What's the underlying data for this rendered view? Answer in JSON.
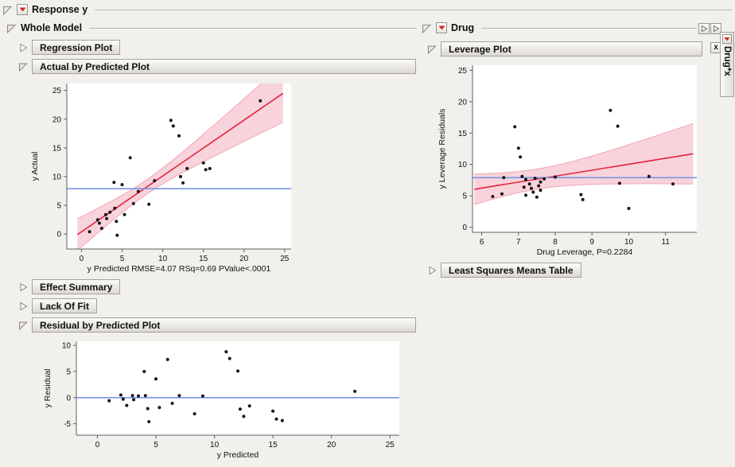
{
  "outlines": {
    "response": "Response y",
    "whole_model": "Whole Model",
    "regression_plot": "Regression Plot",
    "actual_by_predicted": "Actual by Predicted Plot",
    "effect_summary": "Effect Summary",
    "lack_of_fit": "Lack Of Fit",
    "residual_by_predicted": "Residual by Predicted Plot",
    "drug": "Drug",
    "leverage_plot": "Leverage Plot",
    "least_squares_means": "Least Squares Means Table",
    "drug_x_tab": "Drug*x",
    "close_label": "x"
  },
  "palette": {
    "fit": "#e2243f",
    "band_fill": "#f9d3db",
    "band_edge": "#efa6b4",
    "mean": "#7795e8",
    "point": "#141414",
    "axis": "#5f5f5f",
    "plot_bg": "#ffffff"
  },
  "chart_data": [
    {
      "type": "scatter",
      "title": "Actual by Predicted Plot",
      "xlabel": "y Predicted RMSE=4.07 RSq=0.69 PValue<.0001",
      "ylabel": "y Actual",
      "xlim": [
        -1.8,
        25.8
      ],
      "ylim": [
        -2.6,
        26.2
      ],
      "xticks": [
        0,
        5,
        10,
        15,
        20,
        25
      ],
      "yticks": [
        0,
        5,
        10,
        15,
        20,
        25
      ],
      "grid": false,
      "legend": "none",
      "points": [
        [
          1,
          0.4
        ],
        [
          2,
          2.5
        ],
        [
          2.2,
          1.9
        ],
        [
          2.5,
          1
        ],
        [
          3,
          3.4
        ],
        [
          3.1,
          2.7
        ],
        [
          3.5,
          3.8
        ],
        [
          4,
          9
        ],
        [
          4.1,
          4.5
        ],
        [
          4.3,
          2.2
        ],
        [
          4.4,
          -0.2
        ],
        [
          5,
          8.6
        ],
        [
          5.3,
          3.4
        ],
        [
          6,
          13.3
        ],
        [
          6.4,
          5.3
        ],
        [
          7,
          7.4
        ],
        [
          8.3,
          5.2
        ],
        [
          9,
          9.3
        ],
        [
          11,
          19.8
        ],
        [
          11.3,
          18.8
        ],
        [
          12,
          17.1
        ],
        [
          12.2,
          10
        ],
        [
          12.5,
          8.9
        ],
        [
          13,
          11.4
        ],
        [
          15,
          12.4
        ],
        [
          15.3,
          11.2
        ],
        [
          15.8,
          11.4
        ],
        [
          22,
          23.2
        ]
      ],
      "fit_line": {
        "x1": -0.5,
        "y1": -0.1,
        "x2": 24.8,
        "y2": 24.5
      },
      "mean_line": {
        "y": 7.9
      },
      "band": {
        "h": 1.25,
        "cx": 8,
        "s": 4.3
      }
    },
    {
      "type": "scatter",
      "title": "Leverage Plot",
      "xlabel": "Drug Leverage, P=0.2284",
      "ylabel": "y Leverage Residuals",
      "xlim": [
        5.75,
        11.85
      ],
      "ylim": [
        -0.8,
        25.8
      ],
      "xticks": [
        6,
        7,
        8,
        9,
        10,
        11
      ],
      "yticks": [
        0,
        5,
        10,
        15,
        20,
        25
      ],
      "grid": false,
      "legend": "none",
      "points": [
        [
          6.3,
          4.9
        ],
        [
          6.55,
          5.3
        ],
        [
          6.6,
          7.9
        ],
        [
          6.9,
          16
        ],
        [
          7,
          12.6
        ],
        [
          7.05,
          11.2
        ],
        [
          7.1,
          8.1
        ],
        [
          7.15,
          6.4
        ],
        [
          7.2,
          7.6
        ],
        [
          7.2,
          5.1
        ],
        [
          7.3,
          6.9
        ],
        [
          7.35,
          6.2
        ],
        [
          7.4,
          5.6
        ],
        [
          7.45,
          7.8
        ],
        [
          7.5,
          4.8
        ],
        [
          7.55,
          6.6
        ],
        [
          7.6,
          5.9
        ],
        [
          7.6,
          7.2
        ],
        [
          7.7,
          7.7
        ],
        [
          8,
          8
        ],
        [
          8.7,
          5.2
        ],
        [
          8.75,
          4.4
        ],
        [
          9.5,
          18.6
        ],
        [
          9.7,
          16.1
        ],
        [
          9.75,
          7
        ],
        [
          10,
          3
        ],
        [
          10.55,
          8.1
        ],
        [
          11.2,
          6.9
        ]
      ],
      "fit_line": {
        "x1": 5.8,
        "y1": 6.05,
        "x2": 11.75,
        "y2": 11.7
      },
      "mean_line": {
        "y": 7.9
      },
      "band": {
        "h": 1.6,
        "cx": 7.5,
        "s": 1.5
      }
    },
    {
      "type": "scatter",
      "title": "Residual by Predicted Plot",
      "xlabel": "y Predicted",
      "ylabel": "y Residual",
      "xlim": [
        -1.8,
        25.8
      ],
      "ylim": [
        -7.2,
        10.8
      ],
      "xticks": [
        0,
        5,
        10,
        15,
        20,
        25
      ],
      "yticks": [
        -5,
        0,
        5,
        10
      ],
      "grid": false,
      "legend": "none",
      "points": [
        [
          1,
          -0.6
        ],
        [
          2,
          0.5
        ],
        [
          2.2,
          -0.3
        ],
        [
          2.5,
          -1.5
        ],
        [
          3,
          0.4
        ],
        [
          3.1,
          -0.4
        ],
        [
          3.5,
          0.3
        ],
        [
          4,
          5
        ],
        [
          4.1,
          0.4
        ],
        [
          4.3,
          -2.1
        ],
        [
          4.4,
          -4.6
        ],
        [
          5,
          3.6
        ],
        [
          5.3,
          -1.9
        ],
        [
          6,
          7.3
        ],
        [
          6.4,
          -1.1
        ],
        [
          7,
          0.4
        ],
        [
          8.3,
          -3.1
        ],
        [
          9,
          0.3
        ],
        [
          11,
          8.8
        ],
        [
          11.3,
          7.5
        ],
        [
          12,
          5.1
        ],
        [
          12.2,
          -2.2
        ],
        [
          12.5,
          -3.6
        ],
        [
          13,
          -1.6
        ],
        [
          15,
          -2.6
        ],
        [
          15.3,
          -4.1
        ],
        [
          15.8,
          -4.4
        ],
        [
          22,
          1.2
        ]
      ],
      "mean_line": {
        "y": 0
      }
    }
  ]
}
